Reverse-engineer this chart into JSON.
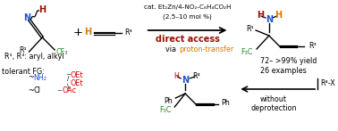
{
  "bg_color": "#ffffff",
  "cat_line1": "cat. Et₂Zn/4-NO₂-C₆H₄CO₂H",
  "cat_line2": "(2.5–10 mol %)",
  "direct_access": "direct access",
  "via_text": "via ",
  "proton_transfer": "proton-transfer",
  "yield_text": "72– >99% yield",
  "examples_text": "26 examples",
  "r1r3_text": "R¹, R³: aryl, alkyl",
  "tolerant_fg": "tolerant FG:",
  "without_line1": "without",
  "without_line2": "deprotection",
  "r4x": "R⁴-X",
  "black": "#000000",
  "blue": "#2255cc",
  "green": "#228822",
  "orange": "#dd7700",
  "dark_red": "#991100",
  "red": "#cc0000"
}
